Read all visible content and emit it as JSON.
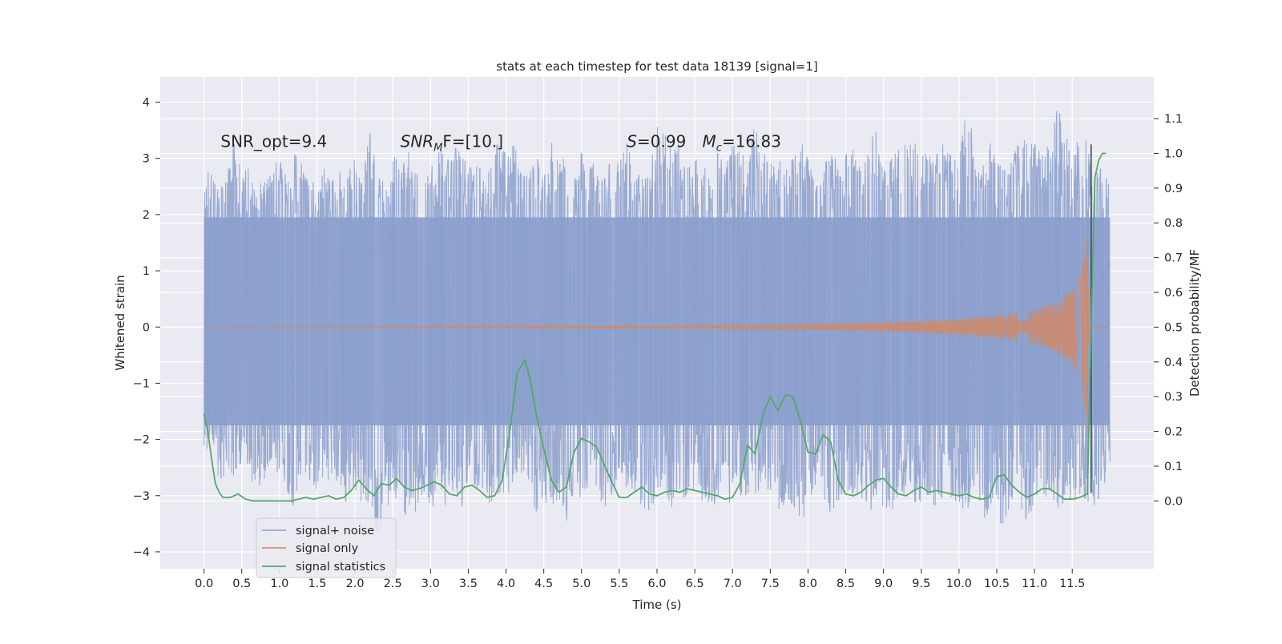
{
  "chart_data": {
    "type": "line",
    "title": "stats at each timestep for test data 18139 [signal=1]",
    "xlabel": "Time (s)",
    "ylabel_left": "Whitened strain",
    "ylabel_right": "Detection probability/MF",
    "xlim": [
      -0.58,
      12.58
    ],
    "ylim_left": [
      -4.3,
      4.45
    ],
    "ylim_right": [
      -0.195,
      1.22
    ],
    "x_ticks": [
      0.0,
      0.5,
      1.0,
      1.5,
      2.0,
      2.5,
      3.0,
      3.5,
      4.0,
      4.5,
      5.0,
      5.5,
      6.0,
      6.5,
      7.0,
      7.5,
      8.0,
      8.5,
      9.0,
      9.5,
      10.0,
      10.5,
      11.0,
      11.5
    ],
    "x_tick_labels": [
      "0.0",
      "0.5",
      "1.0",
      "1.5",
      "2.0",
      "2.5",
      "3.0",
      "3.5",
      "4.0",
      "4.5",
      "5.0",
      "5.5",
      "6.0",
      "6.5",
      "7.0",
      "7.5",
      "8.0",
      "8.5",
      "9.0",
      "9.5",
      "10.0",
      "10.5",
      "11.0",
      "11.5"
    ],
    "y_left_ticks": [
      4,
      3,
      2,
      1,
      0,
      -1,
      -2,
      -3,
      -4
    ],
    "y_left_tick_labels": [
      "4",
      "3",
      "2",
      "1",
      "0",
      "−1",
      "−2",
      "−3",
      "−4"
    ],
    "y_right_ticks": [
      1.1,
      1.0,
      0.9,
      0.8,
      0.7,
      0.6,
      0.5,
      0.4,
      0.3,
      0.2,
      0.1,
      0.0
    ],
    "y_right_tick_labels": [
      "1.1",
      "1.0",
      "0.9",
      "0.8",
      "0.7",
      "0.6",
      "0.5",
      "0.4",
      "0.3",
      "0.2",
      "0.1",
      "0.0"
    ],
    "grid": true,
    "legend_position": "lower-left",
    "annotations": [
      {
        "plain": "SNR_opt=9.4",
        "at": [
          0.22,
          3.3
        ]
      },
      {
        "main": "SNR",
        "sub": "M",
        "rest": "F=[10.]",
        "at": [
          2.6,
          3.3
        ]
      },
      {
        "main": "S",
        "rest": "=0.99",
        "at": [
          5.6,
          3.3
        ]
      },
      {
        "main": "M",
        "sub": "c",
        "rest": "=16.83",
        "at": [
          6.6,
          3.3
        ]
      }
    ],
    "series": [
      {
        "name": "signal+ noise",
        "color": "#8b9fcd",
        "axis": "left",
        "x_range": [
          0.0,
          12.0
        ],
        "upper_envelope_y": [
          2.9,
          2.7,
          2.5,
          2.7,
          3.5,
          2.7,
          2.9,
          2.6,
          2.6,
          2.9,
          3.0,
          2.7,
          3.3,
          3.2,
          2.5,
          2.7,
          3.0,
          2.6,
          2.9,
          2.7,
          3.1,
          2.8,
          3.5,
          2.7,
          2.6,
          3.1,
          2.9,
          3.2,
          2.8,
          2.6,
          2.9,
          3.3,
          3.0,
          3.1,
          3.4,
          2.9,
          3.0,
          2.7,
          3.0,
          3.4,
          3.1,
          3.3,
          2.9,
          3.0,
          3.2,
          2.7,
          3.3,
          3.0,
          3.6,
          2.7,
          3.2,
          3.1,
          2.9,
          2.8,
          3.1,
          2.9,
          3.4,
          2.7,
          2.8,
          2.9,
          3.6,
          3.5,
          3.4,
          3.3,
          2.8,
          3.1,
          3.0,
          2.7,
          3.2,
          2.9,
          3.4,
          3.1,
          3.0,
          3.7,
          3.2,
          2.9,
          3.0,
          3.0,
          3.1,
          3.3,
          3.1,
          2.8,
          2.9,
          3.3,
          2.9,
          3.1,
          3.2,
          2.8,
          3.3,
          3.5,
          2.8,
          3.0,
          3.2,
          3.4,
          3.5,
          3.0,
          3.3,
          3.2,
          3.3,
          3.1,
          2.9,
          4.1,
          3.4,
          2.9,
          3.3,
          3.1,
          3.0,
          3.0,
          3.4,
          3.3,
          3.3,
          3.1,
          3.3,
          4.0,
          3.6,
          3.0,
          3.5,
          3.3,
          2.9,
          2.8,
          2.6
        ],
        "lower_envelope_y": [
          -2.4,
          -1.9,
          -2.8,
          -2.6,
          -2.7,
          -2.4,
          -2.6,
          -3.1,
          -2.8,
          -2.4,
          -2.7,
          -2.9,
          -3.3,
          -2.5,
          -2.9,
          -3.0,
          -2.6,
          -2.9,
          -2.8,
          -3.2,
          -2.9,
          -3.4,
          -3.2,
          -3.9,
          -3.4,
          -3.0,
          -3.2,
          -3.7,
          -3.4,
          -3.0,
          -3.5,
          -2.7,
          -3.2,
          -2.9,
          -3.3,
          -2.8,
          -3.0,
          -2.9,
          -3.2,
          -3.5,
          -3.1,
          -2.8,
          -2.6,
          -2.8,
          -3.4,
          -3.1,
          -3.2,
          -3.1,
          -3.5,
          -3.0,
          -3.1,
          -2.9,
          -2.9,
          -3.3,
          -3.0,
          -2.8,
          -3.0,
          -3.1,
          -3.2,
          -3.4,
          -3.1,
          -2.9,
          -3.3,
          -3.0,
          -3.1,
          -2.9,
          -3.2,
          -3.3,
          -3.2,
          -3.0,
          -3.4,
          -3.0,
          -3.0,
          -3.1,
          -2.8,
          -3.0,
          -3.3,
          -3.2,
          -3.3,
          -3.7,
          -3.1,
          -2.9,
          -3.2,
          -3.3,
          -3.1,
          -2.9,
          -3.0,
          -3.1,
          -3.4,
          -3.1,
          -3.2,
          -3.3,
          -3.0,
          -3.1,
          -3.2,
          -3.2,
          -3.0,
          -3.3,
          -3.2,
          -3.1,
          -3.2,
          -3.3,
          -3.0,
          -3.5,
          -3.3,
          -3.6,
          -3.5,
          -3.2,
          -3.1,
          -3.6,
          -3.2,
          -3.1,
          -3.0,
          -3.3,
          -3.1,
          -3.2,
          -3.0,
          -3.1,
          -3.2,
          -2.9,
          -2.6
        ]
      },
      {
        "name": "signal only",
        "color": "#dd8452",
        "axis": "left",
        "description_points_x": [
          0.0,
          6.0,
          8.0,
          9.0,
          10.0,
          10.5,
          11.0,
          11.3,
          11.5,
          11.6,
          11.65,
          11.7,
          11.73
        ],
        "amplitude_y": [
          0.0,
          0.02,
          0.05,
          0.08,
          0.14,
          0.2,
          0.31,
          0.45,
          0.65,
          0.9,
          1.3,
          1.9,
          0.0
        ]
      },
      {
        "name": "signal statistics",
        "color": "#55a868",
        "axis": "right",
        "x": [
          0.0,
          0.05,
          0.1,
          0.15,
          0.2,
          0.25,
          0.35,
          0.45,
          0.55,
          0.65,
          0.75,
          0.85,
          0.95,
          1.05,
          1.15,
          1.25,
          1.35,
          1.45,
          1.55,
          1.65,
          1.75,
          1.85,
          1.95,
          2.05,
          2.15,
          2.25,
          2.35,
          2.45,
          2.55,
          2.65,
          2.75,
          2.85,
          2.95,
          3.05,
          3.15,
          3.25,
          3.35,
          3.45,
          3.55,
          3.65,
          3.75,
          3.85,
          3.95,
          4.05,
          4.15,
          4.25,
          4.32,
          4.4,
          4.5,
          4.6,
          4.7,
          4.8,
          4.9,
          5.0,
          5.1,
          5.2,
          5.3,
          5.4,
          5.5,
          5.6,
          5.7,
          5.8,
          5.9,
          6.0,
          6.1,
          6.2,
          6.3,
          6.4,
          6.5,
          6.6,
          6.7,
          6.8,
          6.9,
          7.0,
          7.1,
          7.2,
          7.3,
          7.4,
          7.5,
          7.6,
          7.7,
          7.8,
          7.9,
          8.0,
          8.1,
          8.2,
          8.3,
          8.4,
          8.5,
          8.6,
          8.7,
          8.8,
          8.9,
          9.0,
          9.1,
          9.2,
          9.3,
          9.4,
          9.5,
          9.6,
          9.7,
          9.8,
          9.9,
          10.0,
          10.1,
          10.2,
          10.3,
          10.4,
          10.5,
          10.6,
          10.7,
          10.8,
          10.9,
          11.0,
          11.1,
          11.2,
          11.3,
          11.4,
          11.5,
          11.6,
          11.7,
          11.75,
          11.8,
          11.85,
          11.9,
          11.95
        ],
        "y": [
          0.25,
          0.2,
          0.12,
          0.05,
          0.025,
          0.01,
          0.01,
          0.02,
          0.005,
          0.0,
          0.0,
          0.0,
          0.0,
          0.0,
          0.0,
          0.005,
          0.01,
          0.005,
          0.01,
          0.015,
          0.005,
          0.01,
          0.03,
          0.06,
          0.035,
          0.015,
          0.05,
          0.045,
          0.065,
          0.04,
          0.03,
          0.035,
          0.045,
          0.055,
          0.045,
          0.02,
          0.015,
          0.04,
          0.045,
          0.03,
          0.01,
          0.015,
          0.06,
          0.2,
          0.37,
          0.405,
          0.35,
          0.25,
          0.15,
          0.06,
          0.025,
          0.04,
          0.14,
          0.18,
          0.17,
          0.155,
          0.105,
          0.055,
          0.01,
          0.01,
          0.025,
          0.04,
          0.02,
          0.015,
          0.025,
          0.03,
          0.025,
          0.035,
          0.03,
          0.025,
          0.02,
          0.015,
          0.005,
          0.01,
          0.05,
          0.16,
          0.135,
          0.245,
          0.3,
          0.26,
          0.305,
          0.3,
          0.23,
          0.14,
          0.135,
          0.19,
          0.17,
          0.06,
          0.02,
          0.015,
          0.025,
          0.045,
          0.06,
          0.065,
          0.04,
          0.02,
          0.015,
          0.03,
          0.04,
          0.025,
          0.03,
          0.025,
          0.02,
          0.015,
          0.02,
          0.01,
          0.005,
          0.01,
          0.07,
          0.075,
          0.045,
          0.025,
          0.01,
          0.02,
          0.035,
          0.035,
          0.02,
          0.005,
          0.005,
          0.01,
          0.02,
          0.5,
          0.93,
          0.98,
          1.0,
          1.0
        ]
      }
    ]
  }
}
